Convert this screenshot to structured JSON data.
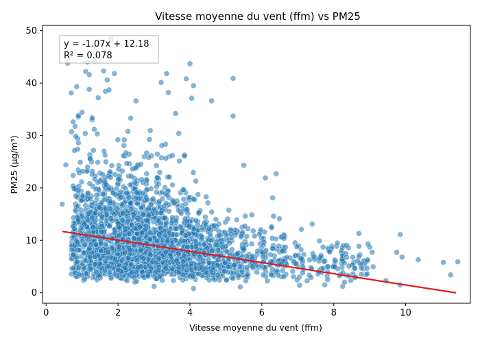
{
  "chart_data": {
    "type": "scatter",
    "title": "Vitesse moyenne du vent (ffm) vs PM25",
    "xlabel": "Vitesse moyenne du vent (ffm)",
    "ylabel": "PM25 (µg/m³)",
    "xlim": [
      -0.1,
      11.8
    ],
    "ylim": [
      -2.0,
      51.0
    ],
    "xticks": [
      0,
      2,
      4,
      6,
      8,
      10
    ],
    "yticks": [
      0,
      10,
      20,
      30,
      40,
      50
    ],
    "grid": false,
    "point_color": "#1f77b4",
    "point_alpha": 0.55,
    "regression": {
      "slope": -1.07,
      "intercept": 12.18,
      "x_range": [
        0.45,
        11.4
      ],
      "color": "#e31a1c"
    },
    "annotation": {
      "lines": [
        "y = -1.07x + 12.18",
        "R² = 0.078"
      ],
      "position": "top-left"
    },
    "outliers": [
      [
        0.45,
        16.9
      ],
      [
        0.55,
        24.4
      ],
      [
        0.6,
        43.8
      ],
      [
        0.7,
        45.5
      ],
      [
        0.7,
        38.1
      ],
      [
        0.75,
        32.6
      ],
      [
        0.85,
        39.3
      ],
      [
        0.9,
        33.8
      ],
      [
        1.0,
        34.4
      ],
      [
        1.1,
        42.2
      ],
      [
        1.15,
        44.0
      ],
      [
        1.2,
        38.8
      ],
      [
        1.2,
        41.6
      ],
      [
        1.35,
        44.2
      ],
      [
        1.45,
        37.2
      ],
      [
        1.6,
        42.3
      ],
      [
        1.65,
        38.4
      ],
      [
        1.7,
        40.6
      ],
      [
        1.75,
        38.7
      ],
      [
        1.8,
        48.5
      ],
      [
        1.9,
        41.8
      ],
      [
        2.35,
        33.3
      ],
      [
        2.5,
        36.6
      ],
      [
        3.2,
        40.1
      ],
      [
        3.35,
        41.8
      ],
      [
        3.4,
        38.2
      ],
      [
        3.6,
        34.2
      ],
      [
        3.9,
        40.8
      ],
      [
        4.0,
        43.7
      ],
      [
        4.05,
        37.1
      ],
      [
        4.1,
        39.5
      ],
      [
        4.6,
        36.6
      ],
      [
        5.2,
        40.9
      ],
      [
        5.2,
        33.7
      ],
      [
        5.5,
        24.3
      ],
      [
        6.1,
        21.9
      ],
      [
        6.4,
        22.7
      ],
      [
        6.3,
        18.1
      ],
      [
        7.1,
        12.1
      ],
      [
        7.4,
        13.1
      ],
      [
        7.6,
        9.9
      ],
      [
        8.1,
        9.5
      ],
      [
        8.7,
        11.3
      ],
      [
        8.95,
        9.3
      ],
      [
        9.75,
        7.7
      ],
      [
        9.85,
        11.1
      ],
      [
        9.9,
        6.8
      ],
      [
        10.35,
        6.3
      ],
      [
        11.05,
        5.8
      ],
      [
        11.25,
        3.4
      ],
      [
        11.45,
        5.9
      ],
      [
        9.45,
        2.3
      ],
      [
        9.85,
        1.5
      ],
      [
        8.25,
        1.2
      ],
      [
        7.75,
        1.5
      ],
      [
        7.05,
        1.4
      ],
      [
        5.4,
        1.1
      ],
      [
        4.1,
        0.8
      ],
      [
        3.0,
        1.2
      ],
      [
        8.3,
        2.0
      ]
    ]
  }
}
